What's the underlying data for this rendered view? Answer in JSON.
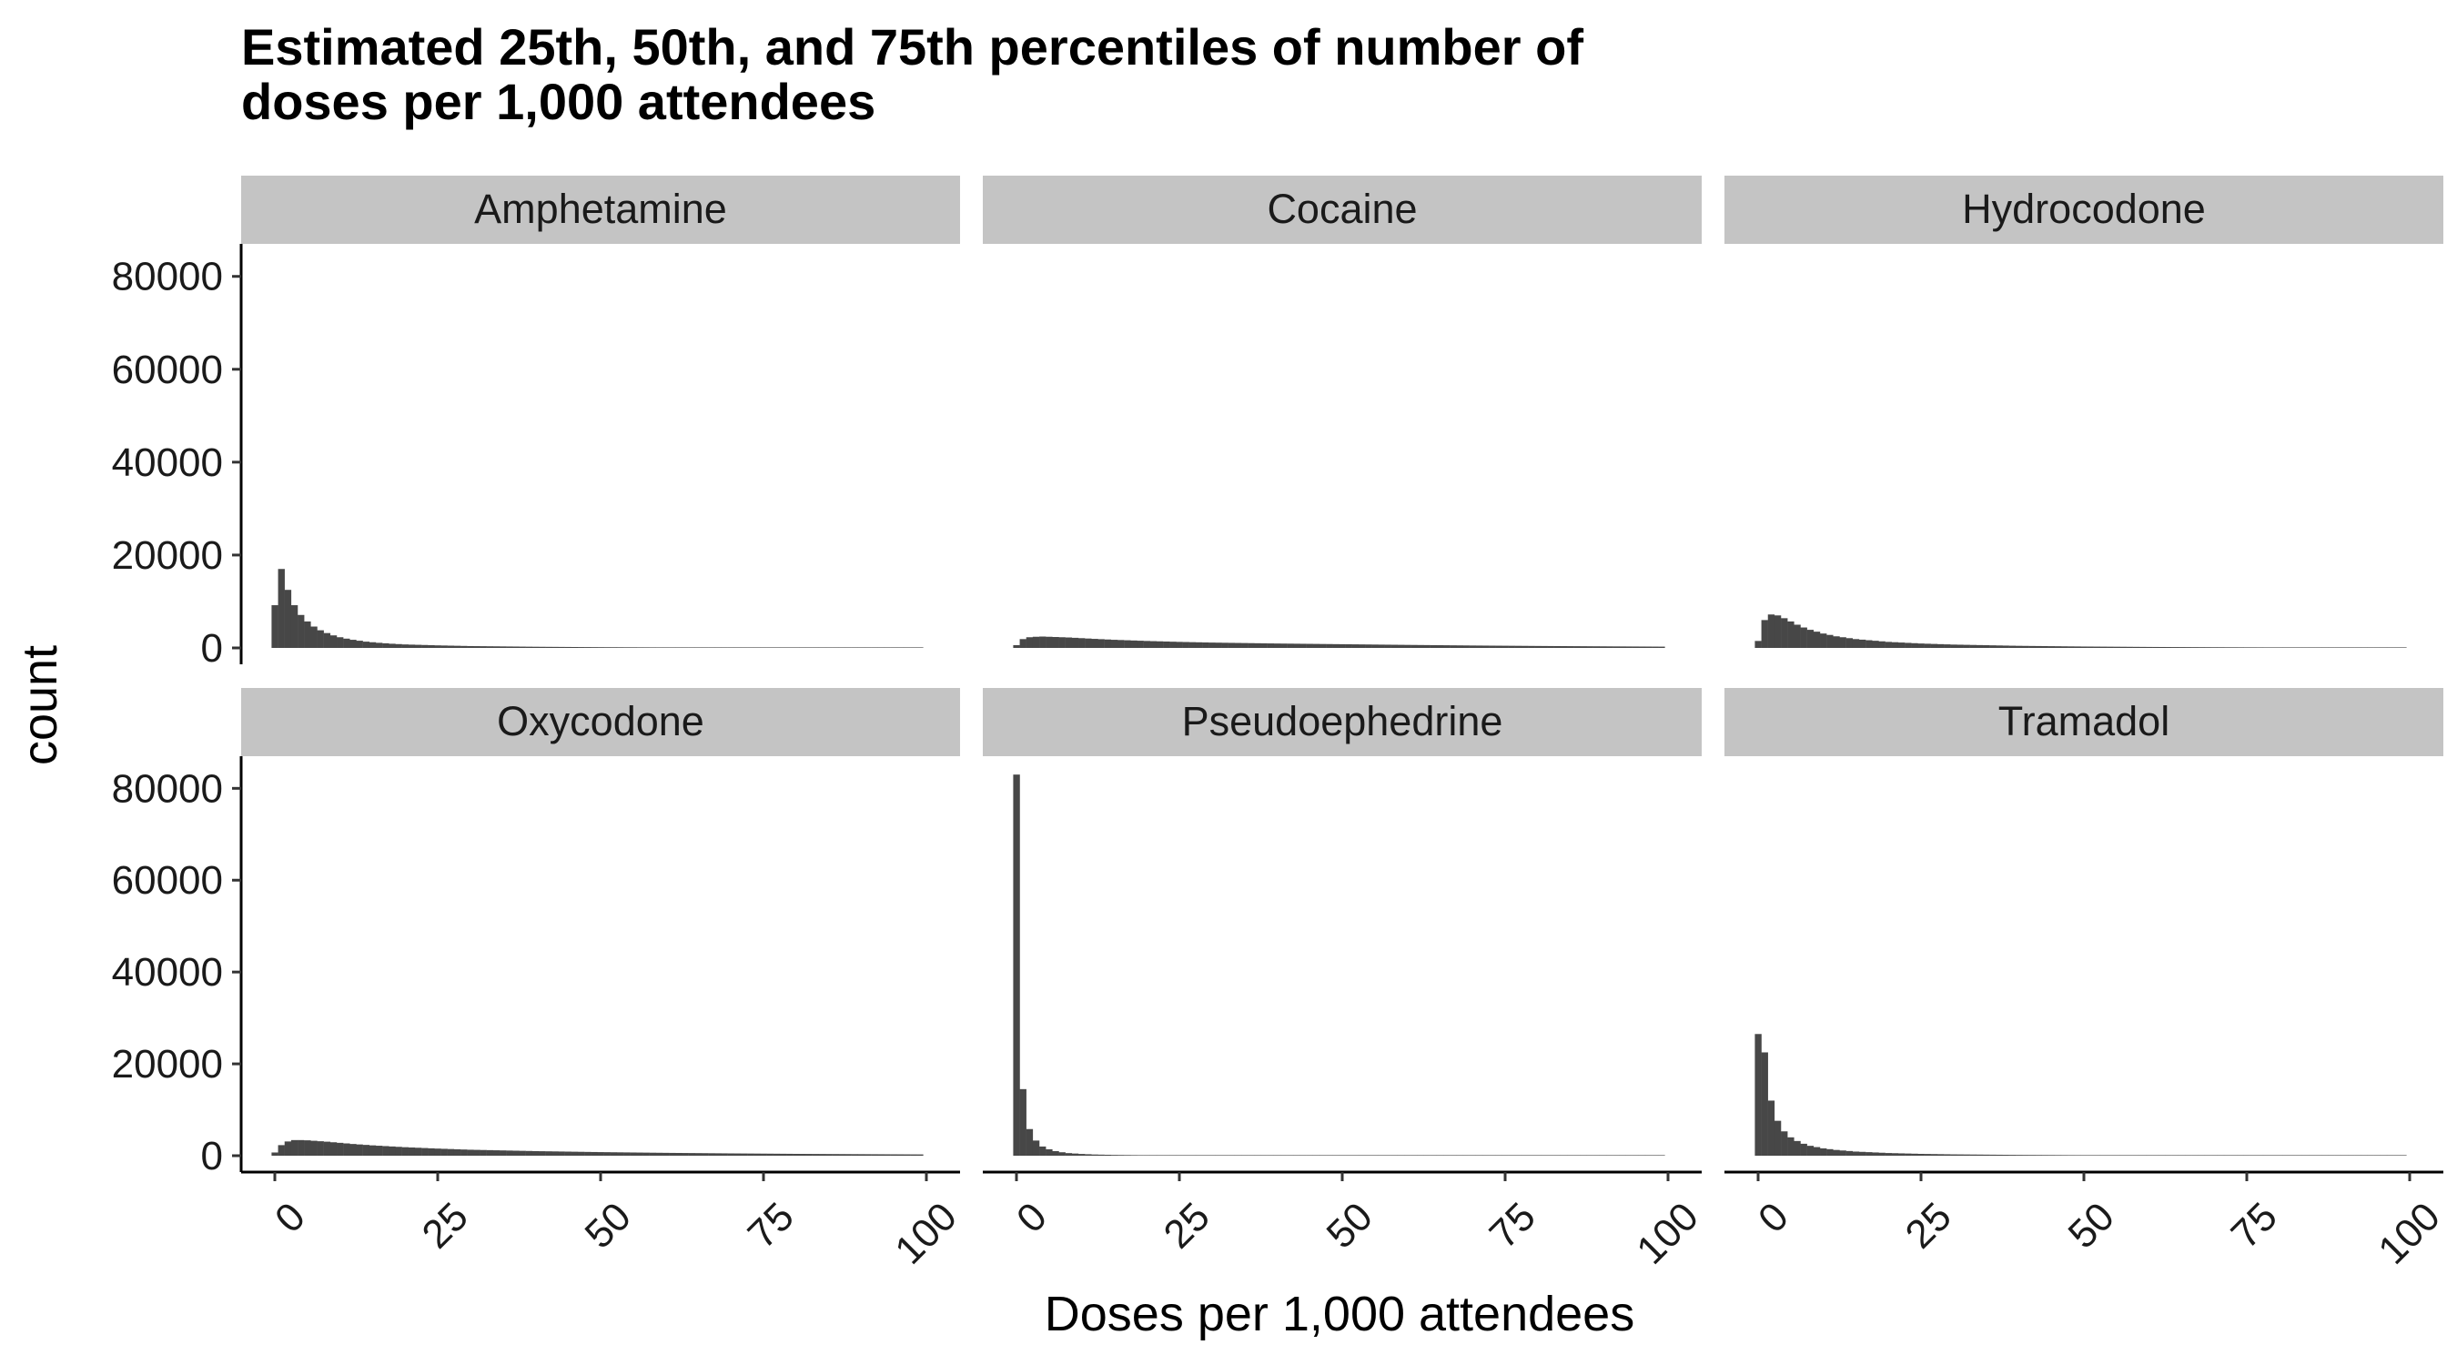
{
  "chart_data": {
    "type": "bar",
    "title": [
      "Estimated 25th, 50th, and 75th percentiles of number of",
      "doses per 1,000 attendees"
    ],
    "xlabel": "Doses per 1,000 attendees",
    "ylabel": "count",
    "xlim": [
      0,
      100
    ],
    "ylim": [
      0,
      87000
    ],
    "x_ticks": [
      "0",
      "25",
      "50",
      "75",
      "100"
    ],
    "y_ticks": [
      "0",
      "20000",
      "40000",
      "60000",
      "80000"
    ],
    "grid": false,
    "legend": "none",
    "bar_color": "#474747",
    "strip_color": "#c4c4c4",
    "panels": [
      {
        "name": "Amphetamine",
        "x": [
          0,
          1,
          2,
          3,
          4,
          5,
          6,
          7,
          8,
          9,
          10,
          11,
          12,
          13,
          14,
          16,
          18,
          20,
          25,
          30,
          40,
          50,
          60,
          70,
          80,
          90,
          100
        ],
        "counts": [
          9200,
          17000,
          12500,
          9200,
          7100,
          5700,
          4600,
          3800,
          3200,
          2700,
          2300,
          2000,
          1750,
          1550,
          1350,
          1100,
          900,
          750,
          550,
          400,
          250,
          160,
          110,
          80,
          60,
          40,
          30
        ]
      },
      {
        "name": "Cocaine",
        "x": [
          0,
          1,
          2,
          3,
          4,
          5,
          6,
          8,
          10,
          12,
          15,
          20,
          25,
          30,
          40,
          50,
          60,
          70,
          80,
          90,
          100
        ],
        "counts": [
          600,
          1900,
          2300,
          2400,
          2450,
          2400,
          2350,
          2250,
          2100,
          1950,
          1750,
          1500,
          1300,
          1150,
          950,
          800,
          650,
          520,
          420,
          340,
          270
        ]
      },
      {
        "name": "Hydrocodone",
        "x": [
          0,
          1,
          2,
          3,
          4,
          5,
          6,
          7,
          8,
          10,
          12,
          15,
          20,
          25,
          30,
          40,
          50,
          60,
          70,
          80,
          90,
          100
        ],
        "counts": [
          1500,
          6000,
          7200,
          7000,
          6400,
          5700,
          5000,
          4400,
          3900,
          3100,
          2500,
          1900,
          1300,
          950,
          720,
          450,
          300,
          210,
          150,
          110,
          80,
          60
        ]
      },
      {
        "name": "Oxycodone",
        "x": [
          0,
          1,
          2,
          3,
          4,
          5,
          6,
          8,
          10,
          12,
          15,
          20,
          25,
          30,
          40,
          50,
          60,
          70,
          80,
          90,
          100
        ],
        "counts": [
          700,
          2300,
          3100,
          3400,
          3400,
          3350,
          3250,
          3050,
          2800,
          2550,
          2250,
          1850,
          1550,
          1300,
          1000,
          780,
          620,
          500,
          400,
          330,
          270
        ]
      },
      {
        "name": "Pseudoephedrine",
        "x": [
          0,
          1,
          2,
          3,
          4,
          5,
          6,
          7,
          8,
          10,
          12,
          15,
          20,
          30,
          50,
          100
        ],
        "counts": [
          83000,
          14500,
          5800,
          3300,
          2000,
          1400,
          1000,
          750,
          560,
          380,
          260,
          170,
          100,
          50,
          20,
          10
        ]
      },
      {
        "name": "Tramadol",
        "x": [
          0,
          1,
          2,
          3,
          4,
          5,
          6,
          7,
          8,
          10,
          12,
          15,
          20,
          25,
          30,
          40,
          50,
          60,
          70,
          80,
          90,
          100
        ],
        "counts": [
          26500,
          22500,
          12000,
          7600,
          5300,
          4000,
          3200,
          2600,
          2150,
          1600,
          1250,
          900,
          580,
          400,
          290,
          170,
          110,
          75,
          55,
          40,
          30,
          25
        ]
      }
    ]
  }
}
